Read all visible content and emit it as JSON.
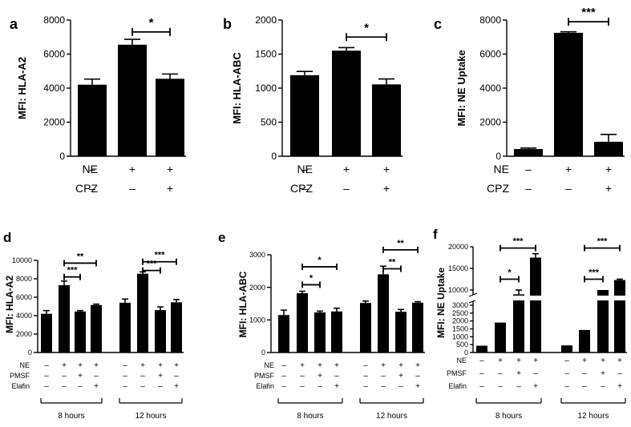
{
  "figure": {
    "background": "#ffffff",
    "bar_color": "#000000"
  },
  "chart_data": [
    {
      "panel": "a",
      "type": "bar",
      "ylabel": "MFI: HLA-A2",
      "yticks": [
        0,
        2000,
        4000,
        6000,
        8000
      ],
      "ylim": [
        0,
        8000
      ],
      "categories": [
        "NE- CPZ-",
        "NE+ CPZ-",
        "NE+ CPZ+"
      ],
      "values": [
        4200,
        6550,
        4550
      ],
      "errors": [
        330,
        320,
        280
      ],
      "conditions": [
        {
          "name": "NE",
          "signs": [
            "–",
            "+",
            "+"
          ]
        },
        {
          "name": "CPZ",
          "signs": [
            "–",
            "–",
            "+"
          ]
        }
      ],
      "significance": [
        {
          "from": 1,
          "to": 2,
          "label": "*",
          "y": 7300
        }
      ]
    },
    {
      "panel": "b",
      "type": "bar",
      "ylabel": "MFI: HLA-ABC",
      "yticks": [
        0,
        500,
        1000,
        1500,
        2000
      ],
      "ylim": [
        0,
        2000
      ],
      "categories": [
        "NE- CPZ-",
        "NE+ CPZ-",
        "NE+ CPZ+"
      ],
      "values": [
        1190,
        1550,
        1055
      ],
      "errors": [
        55,
        45,
        80
      ],
      "conditions": [
        {
          "name": "NE",
          "signs": [
            "–",
            "+",
            "+"
          ]
        },
        {
          "name": "CPZ",
          "signs": [
            "–",
            "–",
            "+"
          ]
        }
      ],
      "significance": [
        {
          "from": 1,
          "to": 2,
          "label": "*",
          "y": 1750
        }
      ]
    },
    {
      "panel": "c",
      "type": "bar",
      "ylabel": "MFI: NE Uptake",
      "yticks": [
        0,
        2000,
        4000,
        6000,
        8000
      ],
      "ylim": [
        0,
        8000
      ],
      "categories": [
        "NE- CPZ-",
        "NE+ CPZ-",
        "NE+ CPZ+"
      ],
      "values": [
        420,
        7250,
        850
      ],
      "errors": [
        60,
        60,
        430
      ],
      "conditions": [
        {
          "name": "NE",
          "signs": [
            "–",
            "+",
            "+"
          ]
        },
        {
          "name": "CPZ",
          "signs": [
            "–",
            "–",
            "+"
          ]
        }
      ],
      "significance": [
        {
          "from": 1,
          "to": 2,
          "label": "***",
          "y": 7900
        }
      ]
    },
    {
      "panel": "d",
      "type": "bar",
      "ylabel": "MFI: HLA-A2",
      "yticks": [
        0,
        2000,
        4000,
        6000,
        8000,
        10000
      ],
      "ylim": [
        0,
        10000
      ],
      "values": [
        4200,
        7300,
        4450,
        5150,
        5400,
        8550,
        4600,
        5450
      ],
      "errors": [
        350,
        450,
        100,
        100,
        400,
        200,
        350,
        300
      ],
      "conditions": [
        {
          "name": "NE",
          "signs": [
            "–",
            "+",
            "+",
            "+",
            "–",
            "+",
            "+",
            "+"
          ]
        },
        {
          "name": "PMSF",
          "signs": [
            "–",
            "–",
            "+",
            "–",
            "–",
            "–",
            "+",
            "–"
          ]
        },
        {
          "name": "Elafin",
          "signs": [
            "–",
            "–",
            "–",
            "+",
            "–",
            "–",
            "–",
            "+"
          ]
        }
      ],
      "groups": [
        {
          "label": "8 hours",
          "from": 0,
          "to": 3
        },
        {
          "label": "12 hours",
          "from": 4,
          "to": 7
        }
      ],
      "significance": [
        {
          "from": 1,
          "to": 3,
          "label": "**",
          "y": 9700
        },
        {
          "from": 1,
          "to": 2,
          "label": "***",
          "y": 8200
        },
        {
          "from": 5,
          "to": 7,
          "label": "***",
          "y": 9850
        },
        {
          "from": 5,
          "to": 6,
          "label": "***",
          "y": 8900
        }
      ]
    },
    {
      "panel": "e",
      "type": "bar",
      "ylabel": "MFI: HLA-ABC",
      "yticks": [
        0,
        1000,
        2000,
        3000
      ],
      "ylim": [
        0,
        3000
      ],
      "values": [
        1150,
        1820,
        1230,
        1260,
        1520,
        2400,
        1250,
        1530
      ],
      "errors": [
        150,
        60,
        40,
        100,
        60,
        250,
        70,
        30
      ],
      "conditions": [
        {
          "name": "NE",
          "signs": [
            "–",
            "+",
            "+",
            "+",
            "–",
            "+",
            "+",
            "+"
          ]
        },
        {
          "name": "PMSF",
          "signs": [
            "–",
            "–",
            "+",
            "–",
            "–",
            "–",
            "+",
            "–"
          ]
        },
        {
          "name": "Elafin",
          "signs": [
            "–",
            "–",
            "–",
            "+",
            "–",
            "–",
            "–",
            "+"
          ]
        }
      ],
      "groups": [
        {
          "label": "8 hours",
          "from": 0,
          "to": 3
        },
        {
          "label": "12 hours",
          "from": 4,
          "to": 7
        }
      ],
      "significance": [
        {
          "from": 1,
          "to": 3,
          "label": "*",
          "y": 2630
        },
        {
          "from": 1,
          "to": 2,
          "label": "*",
          "y": 2080
        },
        {
          "from": 5,
          "to": 7,
          "label": "**",
          "y": 3150
        },
        {
          "from": 5,
          "to": 6,
          "label": "**",
          "y": 2570
        }
      ]
    },
    {
      "panel": "f",
      "type": "bar",
      "ylabel": "MFI: NE Uptake",
      "broken_axis": true,
      "yticks_lower": [
        0,
        500,
        1000,
        1500,
        2000,
        2500,
        3000
      ],
      "yticks_upper": [
        10000,
        15000,
        20000
      ],
      "values": [
        430,
        1900,
        9000,
        17500,
        450,
        1430,
        10000,
        12300
      ],
      "errors": [
        0,
        0,
        1000,
        900,
        0,
        0,
        0,
        200
      ],
      "conditions": [
        {
          "name": "NE",
          "signs": [
            "–",
            "+",
            "+",
            "+",
            "–",
            "+",
            "+",
            "+"
          ]
        },
        {
          "name": "PMSF",
          "signs": [
            "–",
            "–",
            "+",
            "–",
            "–",
            "–",
            "+",
            "–"
          ]
        },
        {
          "name": "Elafin",
          "signs": [
            "–",
            "–",
            "–",
            "+",
            "–",
            "–",
            "–",
            "+"
          ]
        }
      ],
      "groups": [
        {
          "label": "8 hours",
          "from": 0,
          "to": 3
        },
        {
          "label": "12 hours",
          "from": 4,
          "to": 7
        }
      ],
      "significance": [
        {
          "from": 1,
          "to": 3,
          "label": "***",
          "y": 19700
        },
        {
          "from": 1,
          "to": 2,
          "label": "*",
          "y": 12500
        },
        {
          "from": 5,
          "to": 7,
          "label": "***",
          "y": 19700
        },
        {
          "from": 5,
          "to": 6,
          "label": "***",
          "y": 12500
        }
      ]
    }
  ]
}
